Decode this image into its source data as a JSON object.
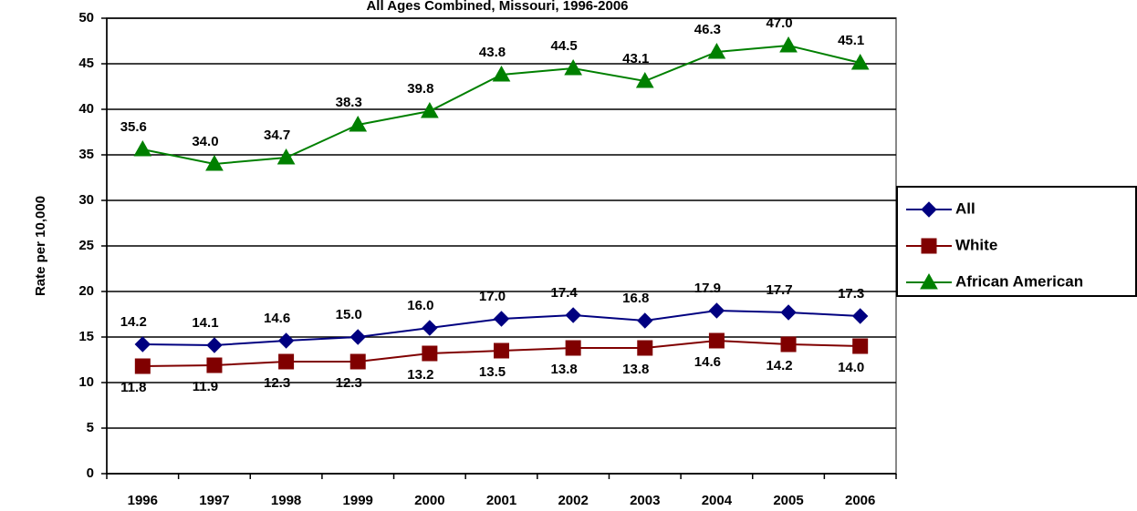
{
  "chart_data": {
    "type": "line",
    "title": "All Ages Combined, Missouri, 1996-2006",
    "y_label": "Rate per 10,000",
    "categories": [
      "1996",
      "1997",
      "1998",
      "1999",
      "2000",
      "2001",
      "2002",
      "2003",
      "2004",
      "2005",
      "2006"
    ],
    "series": [
      {
        "name": "All",
        "color": "#000080",
        "marker": "diamond",
        "label_position": "above",
        "values": [
          14.2,
          14.1,
          14.6,
          15.0,
          16.0,
          17.0,
          17.4,
          16.8,
          17.9,
          17.7,
          17.3
        ],
        "value_labels": [
          "14.2",
          "14.1",
          "14.6",
          "15.0",
          "16.0",
          "17.0",
          "17.4",
          "16.8",
          "17.9",
          "17.7",
          "17.3"
        ]
      },
      {
        "name": "White",
        "color": "#800000",
        "marker": "square",
        "label_position": "below",
        "values": [
          11.8,
          11.9,
          12.3,
          12.3,
          13.2,
          13.5,
          13.8,
          13.8,
          14.6,
          14.2,
          14.0
        ],
        "value_labels": [
          "11.8",
          "11.9",
          "12.3",
          "12.3",
          "13.2",
          "13.5",
          "13.8",
          "13.8",
          "14.6",
          "14.2",
          "14.0"
        ]
      },
      {
        "name": "African American",
        "color": "#008000",
        "marker": "triangle",
        "label_position": "above",
        "values": [
          35.6,
          34.0,
          34.7,
          38.3,
          39.8,
          43.8,
          44.5,
          43.1,
          46.3,
          47.0,
          45.1
        ],
        "value_labels": [
          "35.6",
          "34.0",
          "34.7",
          "38.3",
          "39.8",
          "43.8",
          "44.5",
          "43.1",
          "46.3",
          "47.0",
          "45.1"
        ]
      }
    ],
    "ylim": [
      0,
      50
    ],
    "yticks": [
      0,
      5,
      10,
      15,
      20,
      25,
      30,
      35,
      40,
      45,
      50
    ],
    "grid": true,
    "legend_position": "right"
  }
}
